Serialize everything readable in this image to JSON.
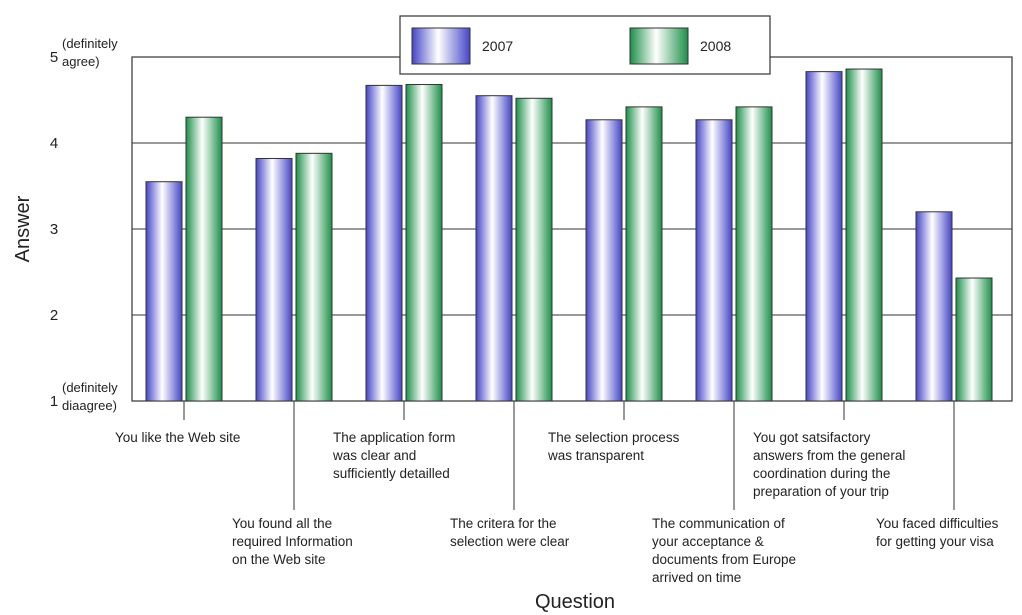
{
  "chart_data": {
    "type": "bar",
    "title": "",
    "xlabel": "Question",
    "ylabel": "Answer",
    "ylim": [
      1,
      5
    ],
    "yticks": [
      "1",
      "2",
      "3",
      "4",
      "5"
    ],
    "y_annotations": {
      "top": [
        "(definitely",
        "agree)"
      ],
      "bottom": [
        "(definitely",
        "diaagree)"
      ]
    },
    "categories": [
      [
        "You like the Web site"
      ],
      [
        "You found all the",
        "required Information",
        "on the Web site"
      ],
      [
        "The application form",
        "was clear and",
        "sufficiently detailled"
      ],
      [
        "The critera for the",
        "selection were clear"
      ],
      [
        "The selection process",
        "was transparent"
      ],
      [
        "The communication of",
        "your acceptance &",
        "documents from Europe",
        "arrived on time"
      ],
      [
        "You got satsifactory",
        "answers from the general",
        "coordination during the",
        "preparation of your trip"
      ],
      [
        "You faced difficulties",
        "for getting your visa"
      ]
    ],
    "series": [
      {
        "name": "2007",
        "color": "#5a5ad6",
        "values": [
          3.55,
          3.82,
          4.67,
          4.55,
          4.27,
          4.27,
          4.83,
          3.2
        ]
      },
      {
        "name": "2008",
        "color": "#2fa35a",
        "values": [
          4.3,
          3.88,
          4.68,
          4.52,
          4.42,
          4.42,
          4.86,
          2.43
        ]
      }
    ],
    "legend_position": "top-center",
    "grid": true
  }
}
